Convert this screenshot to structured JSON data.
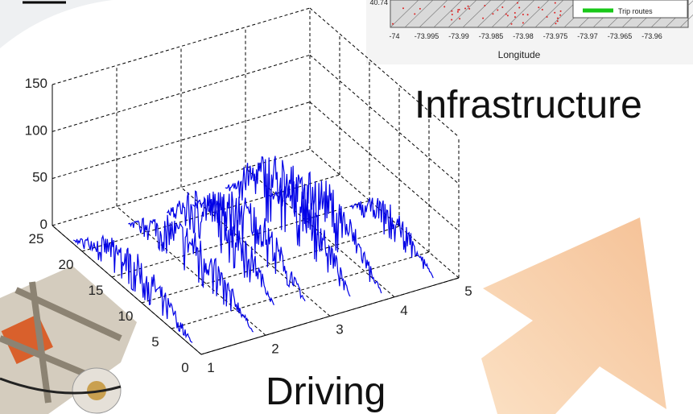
{
  "plot": {
    "z_ticks": [
      "150",
      "100",
      "50",
      "0"
    ],
    "y_ticks": [
      "25",
      "20",
      "15",
      "10",
      "5",
      "0"
    ],
    "x_ticks": [
      "1",
      "2",
      "3",
      "4",
      "5"
    ]
  },
  "labels": {
    "infrastructure": "Infrastructure",
    "driving": "Driving"
  },
  "map": {
    "lat_tick": "40.74",
    "lon_ticks": [
      "-74",
      "-73.995",
      "-73.99",
      "-73.985",
      "-73.98",
      "-73.975",
      "-73.97",
      "-73.965",
      "-73.96"
    ],
    "axis_label": "Longitude",
    "legend": "Trip routes"
  }
}
